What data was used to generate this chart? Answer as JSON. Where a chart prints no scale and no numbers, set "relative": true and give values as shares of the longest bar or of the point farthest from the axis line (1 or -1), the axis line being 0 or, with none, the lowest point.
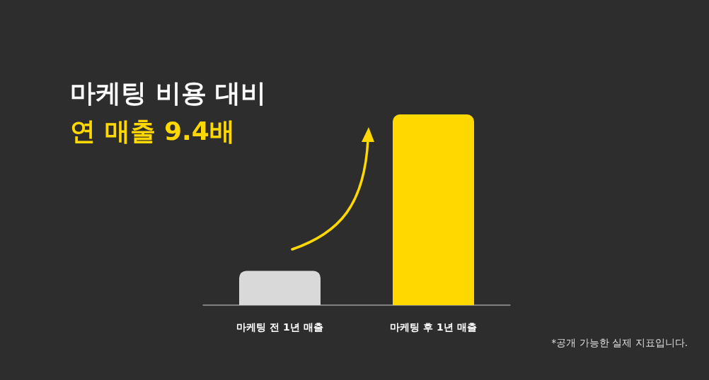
{
  "chart_data": {
    "type": "bar",
    "title": "마케팅 비용 대비",
    "subtitle": "연 매출 9.4배",
    "categories": [
      "마케팅 전 1년 매출",
      "마케팅 후 1년 매출"
    ],
    "values": [
      0.18,
      1
    ],
    "colors": [
      "#d9d9d9",
      "#ffd800"
    ],
    "relative": true,
    "annotations": [
      "*공개 가능한 실제 지표입니다."
    ]
  }
}
